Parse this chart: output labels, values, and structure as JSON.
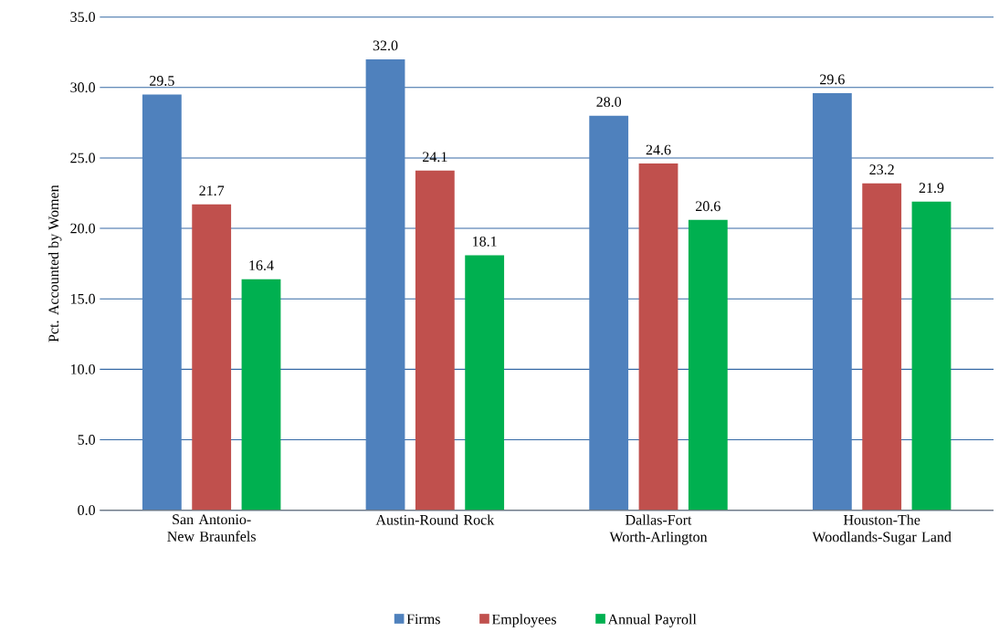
{
  "chart_data": {
    "type": "bar",
    "ylabel": "Pct. Accounted by Women",
    "categories": [
      "San Antonio-New Braunfels",
      "Austin-Round Rock",
      "Dallas-Fort Worth-Arlington",
      "Houston-The Woodlands-Sugar Land"
    ],
    "series": [
      {
        "name": "Firms",
        "color": "#4f81bd",
        "values": [
          29.5,
          32.0,
          28.0,
          29.6
        ],
        "value_labels": [
          "29.5",
          "32.0",
          "28.0",
          "29.6"
        ]
      },
      {
        "name": "Employees",
        "color": "#c0504d",
        "values": [
          21.7,
          24.1,
          24.6,
          23.2
        ],
        "value_labels": [
          "21.7",
          "24.1",
          "24.6",
          "23.2"
        ]
      },
      {
        "name": "Annual Payroll",
        "color": "#00b050",
        "values": [
          16.4,
          18.1,
          20.6,
          21.9
        ],
        "value_labels": [
          "16.4",
          "18.1",
          "20.6",
          "21.9"
        ]
      }
    ],
    "ylim": [
      0,
      35
    ],
    "yticks": [
      {
        "value": 0,
        "label": "0.0"
      },
      {
        "value": 5,
        "label": "5.0"
      },
      {
        "value": 10,
        "label": "10.0"
      },
      {
        "value": 15,
        "label": "15.0"
      },
      {
        "value": 20,
        "label": "20.0"
      },
      {
        "value": 25,
        "label": "25.0"
      },
      {
        "value": 30,
        "label": "30.0"
      },
      {
        "value": 35,
        "label": "35.0"
      }
    ],
    "grid": "y",
    "legend": "bottom"
  }
}
